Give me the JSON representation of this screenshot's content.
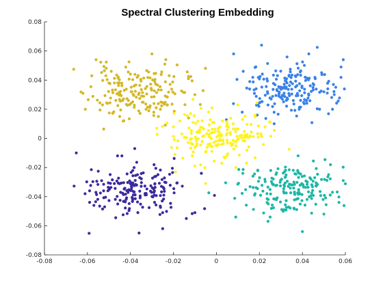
{
  "chart_data": {
    "type": "scatter",
    "title": "Spectral Clustering Embedding",
    "xlabel": "",
    "ylabel": "",
    "xlim": [
      -0.08,
      0.06
    ],
    "ylim": [
      -0.08,
      0.08
    ],
    "xticks": [
      -0.08,
      -0.06,
      -0.04,
      -0.02,
      0,
      0.02,
      0.04,
      0.06
    ],
    "yticks": [
      -0.08,
      -0.06,
      -0.04,
      -0.02,
      0,
      0.02,
      0.04,
      0.06,
      0.08
    ],
    "xtick_labels": [
      "-0.08",
      "-0.06",
      "-0.04",
      "-0.02",
      "0",
      "0.02",
      "0.04",
      "0.06"
    ],
    "ytick_labels": [
      "-0.08",
      "-0.06",
      "-0.04",
      "-0.02",
      "0",
      "0.02",
      "0.04",
      "0.06",
      "0.08"
    ],
    "grid": false,
    "legend": "none",
    "clusters": [
      {
        "color": "#D4B827",
        "center": [
          -0.037,
          0.032
        ],
        "spread": [
          0.011,
          0.009
        ],
        "count": 180,
        "seed": 11,
        "extra_points": [
          [
            -0.061,
            0.02
          ],
          [
            -0.056,
            0.054
          ],
          [
            -0.058,
            0.043
          ],
          [
            -0.03,
            0.058
          ],
          [
            -0.024,
            0.051
          ],
          [
            -0.013,
            0.041
          ],
          [
            -0.01,
            0.03
          ],
          [
            -0.027,
            0.015
          ],
          [
            -0.045,
            0.015
          ],
          [
            -0.053,
            0.023
          ]
        ]
      },
      {
        "color": "#3A82E8",
        "center": [
          0.033,
          0.033
        ],
        "spread": [
          0.011,
          0.009
        ],
        "count": 180,
        "seed": 23,
        "extra_points": [
          [
            0.059,
            0.054
          ],
          [
            0.058,
            0.049
          ],
          [
            0.054,
            0.02
          ],
          [
            0.021,
            0.064
          ],
          [
            0.008,
            0.058
          ],
          [
            0.043,
            0.058
          ],
          [
            0.012,
            0.018
          ],
          [
            0.019,
            0.016
          ],
          [
            0.048,
            0.02
          ],
          [
            0.05,
            0.032
          ]
        ]
      },
      {
        "color": "#FFF21E",
        "center": [
          0.002,
          0.002
        ],
        "spread": [
          0.011,
          0.008
        ],
        "count": 180,
        "seed": 37,
        "extra_points": [
          [
            -0.019,
            -0.023
          ],
          [
            -0.01,
            -0.019
          ],
          [
            -0.005,
            -0.031
          ],
          [
            0.009,
            -0.02
          ],
          [
            0.025,
            0.011
          ],
          [
            0.018,
            0.016
          ],
          [
            0.014,
            -0.017
          ],
          [
            -0.02,
            0.008
          ],
          [
            -0.012,
            0.017
          ],
          [
            0.01,
            0.023
          ]
        ]
      },
      {
        "color": "#3B2A9E",
        "center": [
          -0.037,
          -0.035
        ],
        "spread": [
          0.011,
          0.009
        ],
        "count": 180,
        "seed": 41,
        "extra_points": [
          [
            -0.059,
            -0.036
          ],
          [
            -0.057,
            -0.046
          ],
          [
            -0.052,
            -0.047
          ],
          [
            -0.036,
            -0.065
          ],
          [
            -0.025,
            -0.062
          ],
          [
            -0.014,
            -0.055
          ],
          [
            -0.01,
            -0.051
          ],
          [
            -0.007,
            -0.024
          ],
          [
            -0.038,
            -0.007
          ],
          [
            -0.046,
            -0.012
          ]
        ]
      },
      {
        "color": "#1CB7A6",
        "center": [
          0.034,
          -0.034
        ],
        "spread": [
          0.011,
          0.008
        ],
        "count": 180,
        "seed": 53,
        "extra_points": [
          [
            0.009,
            -0.054
          ],
          [
            0.018,
            -0.038
          ],
          [
            0.054,
            -0.037
          ],
          [
            0.057,
            -0.044
          ],
          [
            0.059,
            -0.029
          ],
          [
            0.04,
            -0.064
          ],
          [
            0.05,
            -0.052
          ],
          [
            0.025,
            -0.054
          ],
          [
            0.038,
            -0.012
          ],
          [
            0.017,
            -0.026
          ]
        ]
      }
    ]
  }
}
